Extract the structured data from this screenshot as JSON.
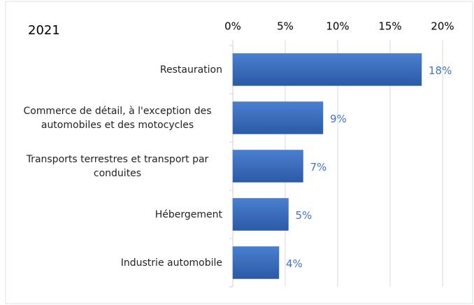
{
  "chart_data": {
    "type": "bar",
    "orientation": "horizontal",
    "title": "2021",
    "categories": [
      "Restauration",
      "Commerce de détail, à l'exception des automobiles et des motocycles",
      "Transports terrestres et transport par conduites",
      "Hébergement",
      "Industrie automobile"
    ],
    "values": [
      18,
      8.6,
      6.7,
      5.3,
      4.4
    ],
    "value_labels": [
      "18%",
      "9%",
      "7%",
      "5%",
      "4%"
    ],
    "color": "#3a6bbf",
    "xlim": [
      0,
      20
    ],
    "xticks": [
      {
        "value": 0,
        "label": "0%"
      },
      {
        "value": 5,
        "label": "5%"
      },
      {
        "value": 10,
        "label": "10%"
      },
      {
        "value": 15,
        "label": "15%"
      },
      {
        "value": 20,
        "label": "20%"
      }
    ],
    "grid": true
  }
}
